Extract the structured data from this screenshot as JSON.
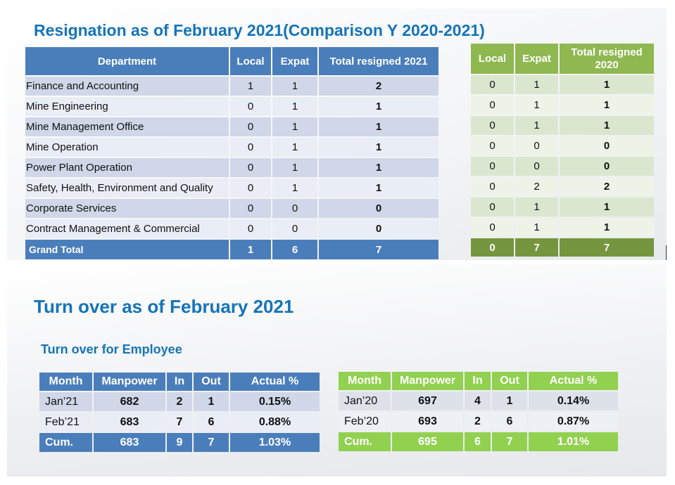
{
  "resignation": {
    "title": "Resignation as of February 2021(Comparison Y 2020-2021)",
    "table_2021": {
      "headers": [
        "Department",
        "Local",
        "Expat",
        "Total resigned 2021"
      ],
      "rows": [
        {
          "dept": "Finance and Accounting",
          "local": "1",
          "expat": "1",
          "total": "2"
        },
        {
          "dept": "Mine Engineering",
          "local": "0",
          "expat": "1",
          "total": "1"
        },
        {
          "dept": "Mine Management Office",
          "local": "0",
          "expat": "1",
          "total": "1"
        },
        {
          "dept": "Mine Operation",
          "local": "0",
          "expat": "1",
          "total": "1"
        },
        {
          "dept": "Power Plant Operation",
          "local": "0",
          "expat": "1",
          "total": "1"
        },
        {
          "dept": "Safety, Health, Environment and Quality",
          "local": "0",
          "expat": "1",
          "total": "1"
        },
        {
          "dept": "Corporate Services",
          "local": "0",
          "expat": "0",
          "total": "0"
        },
        {
          "dept": "Contract Management & Commercial",
          "local": "0",
          "expat": "0",
          "total": "0"
        }
      ],
      "grand_total": {
        "label": "Grand Total",
        "local": "1",
        "expat": "6",
        "total": "7"
      }
    },
    "table_2020": {
      "headers": [
        "Local",
        "Expat",
        "Total resigned 2020"
      ],
      "rows": [
        {
          "local": "0",
          "expat": "1",
          "total": "1"
        },
        {
          "local": "0",
          "expat": "1",
          "total": "1"
        },
        {
          "local": "0",
          "expat": "1",
          "total": "1"
        },
        {
          "local": "0",
          "expat": "0",
          "total": "0"
        },
        {
          "local": "0",
          "expat": "0",
          "total": "0"
        },
        {
          "local": "0",
          "expat": "2",
          "total": "2"
        },
        {
          "local": "0",
          "expat": "1",
          "total": "1"
        },
        {
          "local": "0",
          "expat": "1",
          "total": "1"
        }
      ],
      "grand_total": {
        "local": "0",
        "expat": "7",
        "total": "7"
      }
    }
  },
  "turnover": {
    "title": "Turn over as of February 2021",
    "subtitle": "Turn over for Employee",
    "table_2021": {
      "headers": [
        "Month",
        "Manpower",
        "In",
        "Out",
        "Actual %"
      ],
      "rows": [
        {
          "month": "Jan’21",
          "manpower": "682",
          "in": "2",
          "out": "1",
          "actual": "0.15%"
        },
        {
          "month": "Feb’21",
          "manpower": "683",
          "in": "7",
          "out": "6",
          "actual": "0.88%"
        }
      ],
      "cum": {
        "month": "Cum.",
        "manpower": "683",
        "in": "9",
        "out": "7",
        "actual": "1.03%"
      }
    },
    "table_2020": {
      "headers": [
        "Month",
        "Manpower",
        "In",
        "Out",
        "Actual %"
      ],
      "rows": [
        {
          "month": "Jan’20",
          "manpower": "697",
          "in": "4",
          "out": "1",
          "actual": "0.14%"
        },
        {
          "month": "Feb’20",
          "manpower": "693",
          "in": "2",
          "out": "6",
          "actual": "0.87%"
        }
      ],
      "cum": {
        "month": "Cum.",
        "manpower": "695",
        "in": "6",
        "out": "7",
        "actual": "1.01%"
      }
    }
  },
  "colors": {
    "title_blue": "#1474b8",
    "header_blue": "#4a7ebb",
    "header_green": "#8fb851",
    "total_green": "#75963e",
    "turnover_green": "#92d050"
  }
}
